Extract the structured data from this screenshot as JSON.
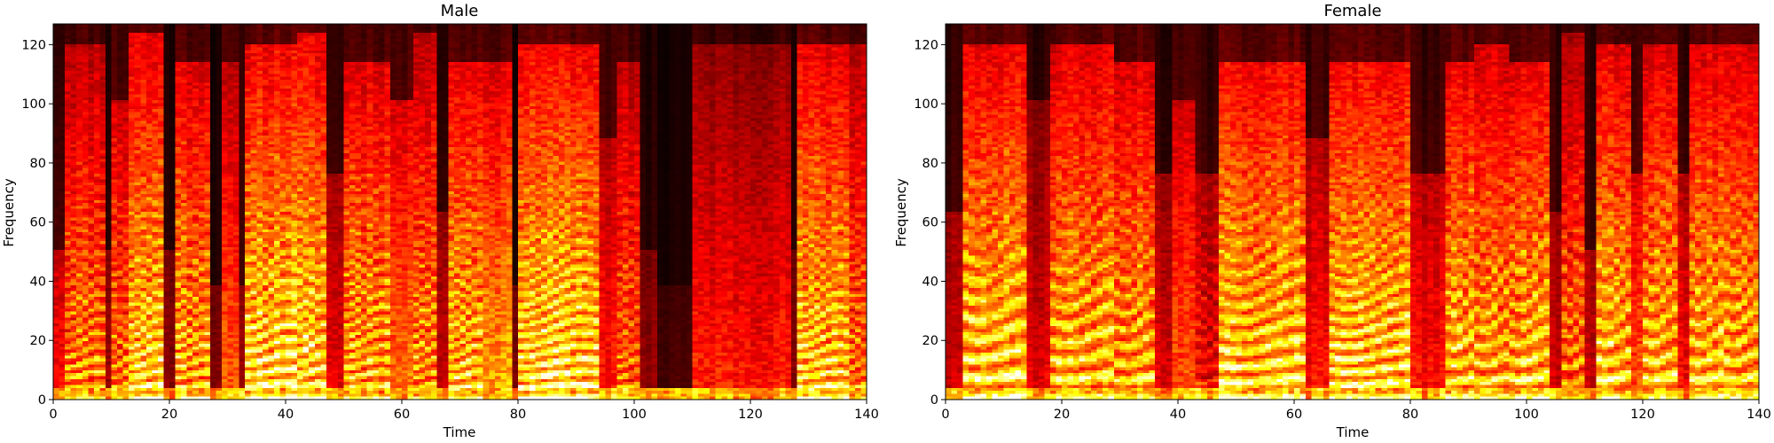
{
  "chart_data": [
    {
      "type": "heatmap",
      "title": "Male",
      "xlabel": "Time",
      "ylabel": "Frequency",
      "xlim": [
        0,
        140
      ],
      "ylim": [
        0,
        127
      ],
      "xticks": [
        0,
        20,
        40,
        60,
        80,
        100,
        120,
        140
      ],
      "yticks": [
        0,
        20,
        40,
        60,
        80,
        100,
        120
      ],
      "colormap": "hot",
      "grid": false,
      "n_time_frames": 140,
      "n_freq_bins": 128,
      "segments": [
        {
          "start": 0,
          "end": 2,
          "level": 0.4,
          "f0": 0,
          "top": 0.4
        },
        {
          "start": 2,
          "end": 9,
          "level": 0.72,
          "f0": 4.0,
          "top": 0.95
        },
        {
          "start": 9,
          "end": 10,
          "level": 0.25,
          "f0": 0,
          "top": 0.4
        },
        {
          "start": 10,
          "end": 13,
          "level": 0.68,
          "f0": 4.0,
          "top": 0.8
        },
        {
          "start": 13,
          "end": 19,
          "level": 0.9,
          "f0": 4.0,
          "top": 0.98
        },
        {
          "start": 19,
          "end": 21,
          "level": 0.22,
          "f0": 0,
          "top": 0.4
        },
        {
          "start": 21,
          "end": 27,
          "level": 0.82,
          "f0": 4.0,
          "top": 0.9
        },
        {
          "start": 27,
          "end": 29,
          "level": 0.2,
          "f0": 0,
          "top": 0.3
        },
        {
          "start": 29,
          "end": 32,
          "level": 0.5,
          "f0": 0,
          "top": 0.9
        },
        {
          "start": 32,
          "end": 33,
          "level": 0.2,
          "f0": 0,
          "top": 0.3
        },
        {
          "start": 33,
          "end": 42,
          "level": 0.95,
          "f0": 4.5,
          "top": 0.95
        },
        {
          "start": 42,
          "end": 47,
          "level": 0.92,
          "f0": 4.5,
          "top": 0.98
        },
        {
          "start": 47,
          "end": 50,
          "level": 0.35,
          "f0": 0,
          "top": 0.6
        },
        {
          "start": 50,
          "end": 58,
          "level": 0.82,
          "f0": 4.0,
          "top": 0.9
        },
        {
          "start": 58,
          "end": 62,
          "level": 0.55,
          "f0": 0,
          "top": 0.8
        },
        {
          "start": 62,
          "end": 66,
          "level": 0.78,
          "f0": 4.0,
          "top": 0.98
        },
        {
          "start": 66,
          "end": 68,
          "level": 0.3,
          "f0": 0,
          "top": 0.5
        },
        {
          "start": 68,
          "end": 74,
          "level": 0.85,
          "f0": 4.0,
          "top": 0.9
        },
        {
          "start": 74,
          "end": 79,
          "level": 0.65,
          "f0": 0,
          "top": 0.9
        },
        {
          "start": 79,
          "end": 80,
          "level": 0.2,
          "f0": 0,
          "top": 0.3
        },
        {
          "start": 80,
          "end": 94,
          "level": 0.95,
          "f0": 4.0,
          "top": 0.95
        },
        {
          "start": 94,
          "end": 97,
          "level": 0.4,
          "f0": 0,
          "top": 0.7
        },
        {
          "start": 97,
          "end": 101,
          "level": 0.65,
          "f0": 4.0,
          "top": 0.9
        },
        {
          "start": 101,
          "end": 104,
          "level": 0.22,
          "f0": 0,
          "top": 0.4
        },
        {
          "start": 104,
          "end": 110,
          "level": 0.1,
          "f0": 0,
          "top": 0.3
        },
        {
          "start": 110,
          "end": 127,
          "level": 0.42,
          "f0": 0,
          "top": 0.95
        },
        {
          "start": 127,
          "end": 128,
          "level": 0.2,
          "f0": 0,
          "top": 0.4
        },
        {
          "start": 128,
          "end": 137,
          "level": 0.88,
          "f0": 4.0,
          "top": 0.95
        },
        {
          "start": 137,
          "end": 140,
          "level": 0.7,
          "f0": 4.0,
          "top": 0.95
        }
      ]
    },
    {
      "type": "heatmap",
      "title": "Female",
      "xlabel": "Time",
      "ylabel": "Frequency",
      "xlim": [
        0,
        140
      ],
      "ylim": [
        0,
        127
      ],
      "xticks": [
        0,
        20,
        40,
        60,
        80,
        100,
        120,
        140
      ],
      "yticks": [
        0,
        20,
        40,
        60,
        80,
        100,
        120
      ],
      "colormap": "hot",
      "grid": false,
      "n_time_frames": 140,
      "n_freq_bins": 128,
      "segments": [
        {
          "start": 0,
          "end": 3,
          "level": 0.3,
          "f0": 0,
          "top": 0.5
        },
        {
          "start": 3,
          "end": 14,
          "level": 0.9,
          "f0": 7.5,
          "top": 0.95
        },
        {
          "start": 14,
          "end": 18,
          "level": 0.35,
          "f0": 0,
          "top": 0.8
        },
        {
          "start": 18,
          "end": 29,
          "level": 0.85,
          "f0": 7.0,
          "top": 0.95
        },
        {
          "start": 29,
          "end": 36,
          "level": 0.8,
          "f0": 6.5,
          "top": 0.9
        },
        {
          "start": 36,
          "end": 39,
          "level": 0.35,
          "f0": 0,
          "top": 0.6
        },
        {
          "start": 39,
          "end": 43,
          "level": 0.5,
          "f0": 0,
          "top": 0.8
        },
        {
          "start": 43,
          "end": 47,
          "level": 0.45,
          "f0": 5.5,
          "top": 0.6
        },
        {
          "start": 47,
          "end": 62,
          "level": 0.9,
          "f0": 6.0,
          "top": 0.9
        },
        {
          "start": 62,
          "end": 66,
          "level": 0.4,
          "f0": 0,
          "top": 0.7
        },
        {
          "start": 66,
          "end": 80,
          "level": 0.92,
          "f0": 5.0,
          "top": 0.9
        },
        {
          "start": 80,
          "end": 86,
          "level": 0.4,
          "f0": 0,
          "top": 0.6
        },
        {
          "start": 86,
          "end": 91,
          "level": 0.85,
          "f0": 6.5,
          "top": 0.9
        },
        {
          "start": 91,
          "end": 97,
          "level": 0.8,
          "f0": 6.5,
          "top": 0.95
        },
        {
          "start": 97,
          "end": 104,
          "level": 0.85,
          "f0": 7.0,
          "top": 0.9
        },
        {
          "start": 104,
          "end": 106,
          "level": 0.3,
          "f0": 0,
          "top": 0.5
        },
        {
          "start": 106,
          "end": 110,
          "level": 0.7,
          "f0": 6.0,
          "top": 0.98
        },
        {
          "start": 110,
          "end": 112,
          "level": 0.3,
          "f0": 0,
          "top": 0.4
        },
        {
          "start": 112,
          "end": 118,
          "level": 0.9,
          "f0": 7.0,
          "top": 0.95
        },
        {
          "start": 118,
          "end": 120,
          "level": 0.5,
          "f0": 0,
          "top": 0.6
        },
        {
          "start": 120,
          "end": 126,
          "level": 0.85,
          "f0": 7.0,
          "top": 0.95
        },
        {
          "start": 126,
          "end": 128,
          "level": 0.4,
          "f0": 0,
          "top": 0.6
        },
        {
          "start": 128,
          "end": 134,
          "level": 0.85,
          "f0": 7.0,
          "top": 0.95
        },
        {
          "start": 134,
          "end": 140,
          "level": 0.8,
          "f0": 7.0,
          "top": 0.95
        }
      ]
    }
  ]
}
